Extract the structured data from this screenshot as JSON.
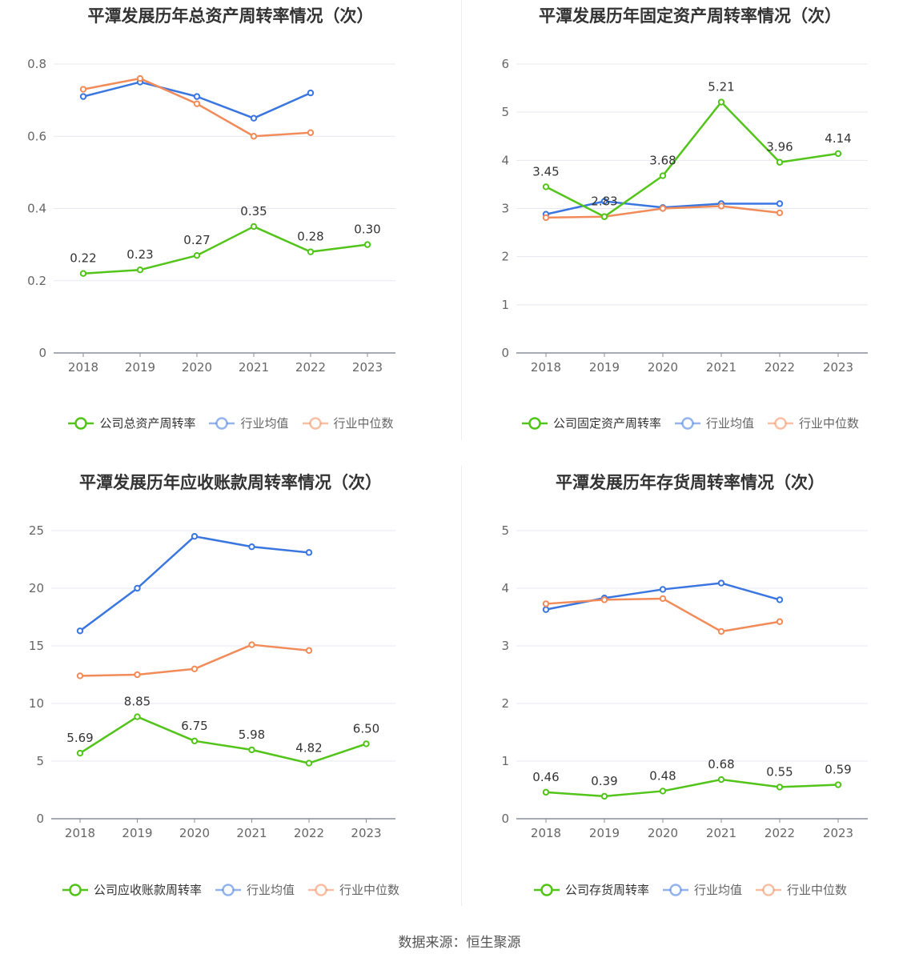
{
  "source": "数据来源：恒生聚源",
  "colors": {
    "company": "#52c41a",
    "avg": "#3a76e0",
    "median": "#f28b5a"
  },
  "chart_data": [
    {
      "type": "line",
      "title": "平潭发展历年总资产周转率情况（次）",
      "categories": [
        "2018",
        "2019",
        "2020",
        "2021",
        "2022",
        "2023"
      ],
      "ylim": [
        0,
        0.8
      ],
      "yticks": [
        "0",
        "0.2",
        "0.4",
        "0.6",
        "0.8"
      ],
      "ytick_values": [
        0,
        0.2,
        0.4,
        0.6,
        0.8
      ],
      "series": [
        {
          "name": "公司总资产周转率",
          "values": [
            0.22,
            0.23,
            0.27,
            0.35,
            0.28,
            0.3
          ],
          "labels": [
            "0.22",
            "0.23",
            "0.27",
            "0.35",
            "0.28",
            "0.30"
          ]
        },
        {
          "name": "行业均值",
          "values": [
            0.71,
            0.75,
            0.71,
            0.65,
            0.72,
            null
          ]
        },
        {
          "name": "行业中位数",
          "values": [
            0.73,
            0.76,
            0.69,
            0.6,
            0.61,
            null
          ]
        }
      ]
    },
    {
      "type": "line",
      "title": "平潭发展历年固定资产周转率情况（次）",
      "categories": [
        "2018",
        "2019",
        "2020",
        "2021",
        "2022",
        "2023"
      ],
      "ylim": [
        0,
        6
      ],
      "yticks": [
        "0",
        "1",
        "2",
        "3",
        "4",
        "5",
        "6"
      ],
      "ytick_values": [
        0,
        1,
        2,
        3,
        4,
        5,
        6
      ],
      "series": [
        {
          "name": "公司固定资产周转率",
          "values": [
            3.45,
            2.83,
            3.68,
            5.21,
            3.96,
            4.14
          ],
          "labels": [
            "3.45",
            "2.83",
            "3.68",
            "5.21",
            "3.96",
            "4.14"
          ]
        },
        {
          "name": "行业均值",
          "values": [
            2.88,
            3.15,
            3.02,
            3.1,
            3.1,
            null
          ]
        },
        {
          "name": "行业中位数",
          "values": [
            2.81,
            2.83,
            3.0,
            3.05,
            2.91,
            null
          ]
        }
      ]
    },
    {
      "type": "line",
      "title": "平潭发展历年应收账款周转率情况（次）",
      "categories": [
        "2018",
        "2019",
        "2020",
        "2021",
        "2022",
        "2023"
      ],
      "ylim": [
        0,
        25
      ],
      "yticks": [
        "0",
        "5",
        "10",
        "15",
        "20",
        "25"
      ],
      "ytick_values": [
        0,
        5,
        10,
        15,
        20,
        25
      ],
      "series": [
        {
          "name": "公司应收账款周转率",
          "values": [
            5.69,
            8.85,
            6.75,
            5.98,
            4.82,
            6.5
          ],
          "labels": [
            "5.69",
            "8.85",
            "6.75",
            "5.98",
            "4.82",
            "6.50"
          ]
        },
        {
          "name": "行业均值",
          "values": [
            16.3,
            20.0,
            24.5,
            23.6,
            23.1,
            null
          ]
        },
        {
          "name": "行业中位数",
          "values": [
            12.4,
            12.5,
            13.0,
            15.1,
            14.6,
            null
          ]
        }
      ]
    },
    {
      "type": "line",
      "title": "平潭发展历年存货周转率情况（次）",
      "categories": [
        "2018",
        "2019",
        "2020",
        "2021",
        "2022",
        "2023"
      ],
      "ylim": [
        0,
        5
      ],
      "yticks": [
        "0",
        "1",
        "2",
        "3",
        "4",
        "5"
      ],
      "ytick_values": [
        0,
        1,
        2,
        3,
        4,
        5
      ],
      "series": [
        {
          "name": "公司存货周转率",
          "values": [
            0.46,
            0.39,
            0.48,
            0.68,
            0.55,
            0.59
          ],
          "labels": [
            "0.46",
            "0.39",
            "0.48",
            "0.68",
            "0.55",
            "0.59"
          ]
        },
        {
          "name": "行业均值",
          "values": [
            3.63,
            3.83,
            3.98,
            4.09,
            3.8,
            null
          ]
        },
        {
          "name": "行业中位数",
          "values": [
            3.73,
            3.8,
            3.82,
            3.25,
            3.42,
            null
          ]
        }
      ]
    }
  ]
}
